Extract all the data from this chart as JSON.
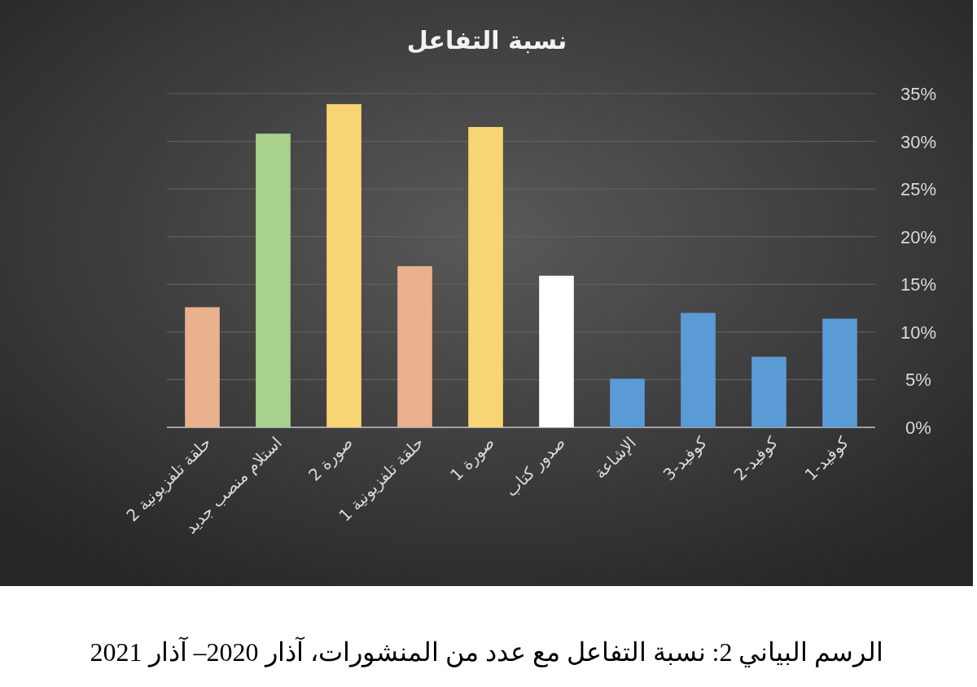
{
  "chart_data": {
    "type": "bar",
    "title": "نسبة التفاعل",
    "categories": [
      "حلقة تلفزيونية 2",
      "استلام منصب جديد",
      "صورة 2",
      "حلقة تلفزيونية 1",
      "صورة 1",
      "صدور كتاب",
      "الإشاعة",
      "كوفيد-3",
      "كوفيد-2",
      "كوفيد-1"
    ],
    "values": [
      12.6,
      30.8,
      33.9,
      16.9,
      31.5,
      15.9,
      5.1,
      12.0,
      7.4,
      11.4
    ],
    "colors": [
      "#e9b18e",
      "#a9d18e",
      "#f8d574",
      "#e9b18e",
      "#f8d574",
      "#ffffff",
      "#5b9bd5",
      "#5b9bd5",
      "#5b9bd5",
      "#5b9bd5"
    ],
    "ylim": [
      0,
      35
    ],
    "yticks": [
      {
        "value": 0,
        "label": "0%"
      },
      {
        "value": 5,
        "label": "5%"
      },
      {
        "value": 10,
        "label": "10%"
      },
      {
        "value": 15,
        "label": "15%"
      },
      {
        "value": 20,
        "label": "20%"
      },
      {
        "value": 25,
        "label": "25%"
      },
      {
        "value": 30,
        "label": "30%"
      },
      {
        "value": 35,
        "label": "35%"
      }
    ],
    "grid": "y",
    "annotations": [
      "الرسم البياني 2: نسبة التفاعل مع عدد من المنشورات، آذار 2020– آذار 2021"
    ]
  }
}
